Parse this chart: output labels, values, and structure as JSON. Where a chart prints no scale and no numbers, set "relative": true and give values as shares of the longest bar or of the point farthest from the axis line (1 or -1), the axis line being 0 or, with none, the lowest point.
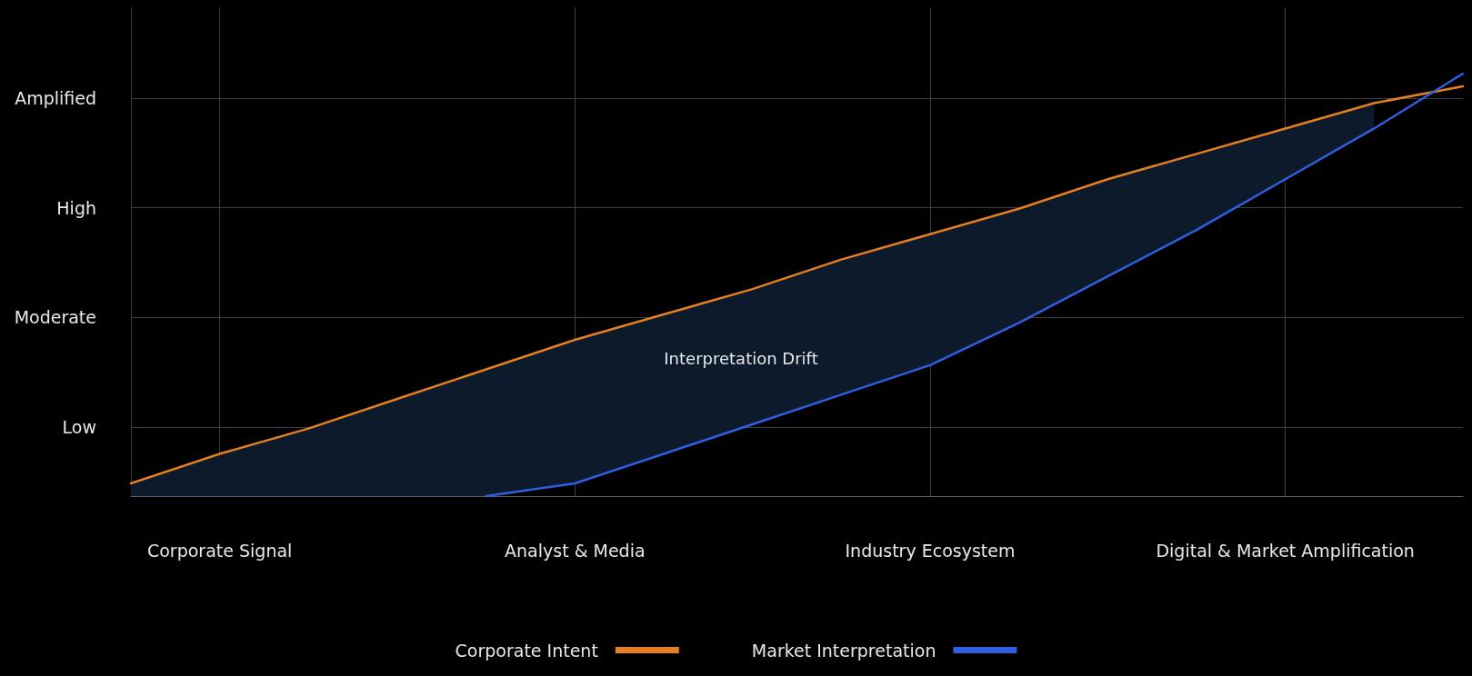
{
  "chart_data": {
    "type": "line",
    "relative": true,
    "categories": [
      null,
      "Corporate Signal",
      null,
      null,
      null,
      "Analyst & Media",
      null,
      null,
      null,
      "Industry Ecosystem",
      null,
      null,
      null,
      "Digital & Market Amplification",
      null,
      null
    ],
    "y_categories": [
      "Amplified",
      "High",
      "Moderate",
      "Low"
    ],
    "series": [
      {
        "name": "Corporate Intent",
        "color": "#e47f22",
        "values": [
          0.03,
          0.1,
          0.16,
          0.23,
          0.3,
          0.37,
          0.43,
          0.49,
          0.56,
          0.62,
          0.68,
          0.75,
          0.81,
          0.87,
          0.93,
          0.97
        ],
        "lower": [
          0,
          0,
          0,
          0,
          0,
          0.03,
          0.1,
          0.17,
          0.24,
          0.31,
          0.41,
          0.52,
          0.63,
          0.75,
          0.87,
          null
        ],
        "upper": [
          0.03,
          0.1,
          0.16,
          0.23,
          0.3,
          0.37,
          0.43,
          0.49,
          0.56,
          0.62,
          0.68,
          0.75,
          0.81,
          0.87,
          0.93,
          null
        ]
      },
      {
        "name": "Market Interpretation",
        "color": "#2f5fe0",
        "values": [
          null,
          null,
          null,
          null,
          0,
          0.03,
          0.1,
          0.17,
          0.24,
          0.31,
          0.41,
          0.52,
          0.63,
          0.75,
          0.87,
          1
        ]
      }
    ],
    "annotations": [
      "Interpretation Drift"
    ],
    "grid": true,
    "legend": "bottom",
    "marker": "none",
    "line_style": "solid"
  }
}
